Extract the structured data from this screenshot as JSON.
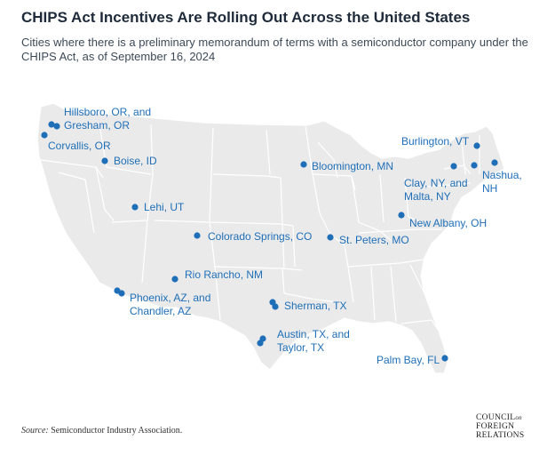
{
  "title": "CHIPS Act Incentives Are Rolling Out Across the United States",
  "subtitle": "Cities where there is a preliminary memorandum of terms with a semiconductor company under the CHIPS Act, as of September 16, 2024",
  "colors": {
    "marker": "#1f6fb8",
    "land": "#eaeaea",
    "borders": "#ffffff",
    "label": "#1f6fb8"
  },
  "locations": [
    {
      "name": "Hillsboro, OR, and Gresham, OR",
      "lines": [
        "Hillsboro, OR, and",
        "Gresham, OR"
      ]
    },
    {
      "name": "Corvallis, OR",
      "lines": [
        "Corvallis, OR"
      ]
    },
    {
      "name": "Boise, ID",
      "lines": [
        "Boise, ID"
      ]
    },
    {
      "name": "Lehi, UT",
      "lines": [
        "Lehi, UT"
      ]
    },
    {
      "name": "Colorado Springs, CO",
      "lines": [
        "Colorado Springs, CO"
      ]
    },
    {
      "name": "Rio Rancho, NM",
      "lines": [
        "Rio Rancho, NM"
      ]
    },
    {
      "name": "Phoenix, AZ, and Chandler, AZ",
      "lines": [
        "Phoenix, AZ, and",
        "Chandler, AZ"
      ]
    },
    {
      "name": "Sherman, TX",
      "lines": [
        "Sherman, TX"
      ]
    },
    {
      "name": "Austin, TX, and Taylor, TX",
      "lines": [
        "Austin, TX, and",
        "Taylor, TX"
      ]
    },
    {
      "name": "Bloomington, MN",
      "lines": [
        "Bloomington, MN"
      ]
    },
    {
      "name": "St. Peters, MO",
      "lines": [
        "St. Peters, MO"
      ]
    },
    {
      "name": "New Albany, OH",
      "lines": [
        "New Albany, OH"
      ]
    },
    {
      "name": "Palm Bay, FL",
      "lines": [
        "Palm Bay, FL"
      ]
    },
    {
      "name": "Burlington, VT",
      "lines": [
        "Burlington, VT"
      ]
    },
    {
      "name": "Clay, NY, and Malta, NY",
      "lines": [
        "Clay, NY, and",
        "Malta, NY"
      ]
    },
    {
      "name": "Nashua, NH",
      "lines": [
        "Nashua,",
        "NH"
      ]
    }
  ],
  "source": {
    "prefix": "Source:",
    "text": " Semiconductor Industry Association."
  },
  "logo": {
    "line1": "COUNCIL",
    "on": "on",
    "line2": "FOREIGN",
    "line3": "RELATIONS"
  }
}
